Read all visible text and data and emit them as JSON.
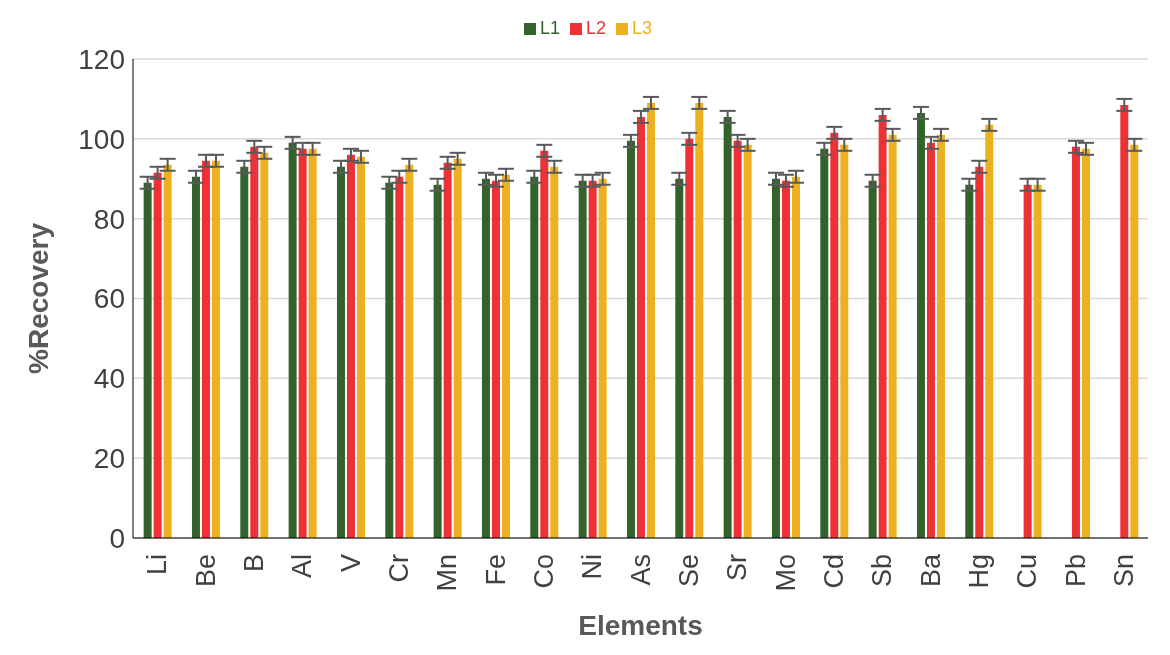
{
  "chart_data": {
    "type": "bar",
    "xlabel": "Elements",
    "ylabel": "%Recovery",
    "categories": [
      "Li",
      "Be",
      "B",
      "Al",
      "V",
      "Cr",
      "Mn",
      "Fe",
      "Co",
      "Ni",
      "As",
      "Se",
      "Sr",
      "Mo",
      "Cd",
      "Sb",
      "Ba",
      "Hg",
      "Cu",
      "Pb",
      "Sn"
    ],
    "series": [
      {
        "name": "L1",
        "color": "#33622d",
        "values": [
          89,
          90.5,
          93,
          99,
          93,
          89,
          88.5,
          90,
          90.5,
          89.5,
          99.5,
          90,
          105.5,
          90,
          97.5,
          89.5,
          106.5,
          88.5,
          null,
          null,
          null
        ],
        "errors": [
          1.5,
          1.5,
          1.5,
          1.5,
          1.5,
          1.5,
          1.5,
          1.5,
          1.5,
          1.5,
          1.5,
          1.5,
          1.5,
          1.5,
          1.5,
          1.5,
          1.5,
          1.5,
          null,
          null,
          null
        ]
      },
      {
        "name": "L2",
        "color": "#ee3135",
        "values": [
          91.5,
          94.5,
          98,
          97.5,
          96,
          90.5,
          94,
          89.5,
          97,
          89.5,
          105.5,
          100,
          99.5,
          89.5,
          101.5,
          106,
          99,
          93,
          88.5,
          98,
          108.5
        ],
        "errors": [
          1.5,
          1.5,
          1.5,
          1.5,
          1.5,
          1.5,
          1.5,
          1.5,
          1.5,
          1.5,
          1.5,
          1.5,
          1.5,
          1.5,
          1.5,
          1.5,
          1.5,
          1.5,
          1.5,
          1.5,
          1.5
        ]
      },
      {
        "name": "L3",
        "color": "#ebb120",
        "values": [
          93.5,
          94.5,
          96.5,
          97.5,
          95.5,
          93.5,
          95,
          91,
          93,
          90,
          109,
          109,
          98.5,
          90.5,
          98.5,
          101,
          101,
          103.5,
          88.5,
          97.5,
          98.5
        ],
        "errors": [
          1.5,
          1.5,
          1.5,
          1.5,
          1.5,
          1.5,
          1.5,
          1.5,
          1.5,
          1.5,
          1.5,
          1.5,
          1.5,
          1.5,
          1.5,
          1.5,
          1.5,
          1.5,
          1.5,
          1.5,
          1.5
        ]
      }
    ],
    "ylim": [
      0,
      120
    ],
    "yticks": [
      0,
      20,
      40,
      60,
      80,
      100,
      120
    ],
    "grid": "y",
    "legend": "top"
  }
}
